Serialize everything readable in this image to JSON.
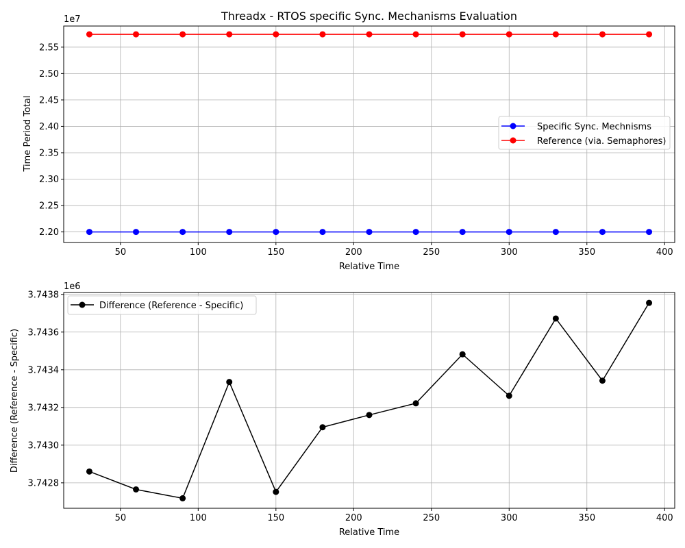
{
  "chart_data": [
    {
      "type": "line",
      "title": "Threadx - RTOS specific Sync. Mechanisms Evaluation",
      "xlabel": "Relative Time",
      "ylabel": "Time Period Total",
      "y_offset_label": "1e7",
      "x": [
        30,
        60,
        90,
        120,
        150,
        180,
        210,
        240,
        270,
        300,
        330,
        360,
        390
      ],
      "xlim": [
        13.5,
        406.5
      ],
      "ylim": [
        21800000,
        25900000
      ],
      "xticks": [
        50,
        100,
        150,
        200,
        250,
        300,
        350,
        400
      ],
      "xtick_labels": [
        "50",
        "100",
        "150",
        "200",
        "250",
        "300",
        "350",
        "400"
      ],
      "yticks": [
        22000000,
        22500000,
        23000000,
        23500000,
        24000000,
        24500000,
        25000000,
        25500000
      ],
      "ytick_labels": [
        "2.20",
        "2.25",
        "2.30",
        "2.35",
        "2.40",
        "2.45",
        "2.50",
        "2.55"
      ],
      "grid": true,
      "legend_position": "center-right",
      "series": [
        {
          "name": "Specific Sync. Mechnisms",
          "color": "#0000ff",
          "marker": "circle",
          "values": [
            22000000,
            22000000,
            22000000,
            22000000,
            22000000,
            22000000,
            22000000,
            22000000,
            22000000,
            22000000,
            22000000,
            22000000,
            22000000
          ]
        },
        {
          "name": "Reference (via. Semaphores)",
          "color": "#ff0000",
          "marker": "circle",
          "values": [
            25743000,
            25743000,
            25743000,
            25743000,
            25743000,
            25743000,
            25743000,
            25743000,
            25743000,
            25743000,
            25743000,
            25743000,
            25743000
          ]
        }
      ]
    },
    {
      "type": "line",
      "title": "",
      "xlabel": "Relative Time",
      "ylabel": "Difference (Reference - Specific)",
      "y_offset_label": "1e6",
      "x": [
        30,
        60,
        90,
        120,
        150,
        180,
        210,
        240,
        270,
        300,
        330,
        360,
        390
      ],
      "xlim": [
        13.5,
        406.5
      ],
      "ylim": [
        3742665,
        3743810
      ],
      "xticks": [
        50,
        100,
        150,
        200,
        250,
        300,
        350,
        400
      ],
      "xtick_labels": [
        "50",
        "100",
        "150",
        "200",
        "250",
        "300",
        "350",
        "400"
      ],
      "yticks": [
        3742800,
        3743000,
        3743200,
        3743400,
        3743600,
        3743800
      ],
      "ytick_labels": [
        "3.7428",
        "3.7430",
        "3.7432",
        "3.7434",
        "3.7436",
        "3.7438"
      ],
      "grid": true,
      "legend_position": "top-left",
      "series": [
        {
          "name": "Difference (Reference - Specific)",
          "color": "#000000",
          "marker": "circle",
          "values": [
            3742860,
            3742765,
            3742718,
            3743335,
            3742752,
            3743095,
            3743160,
            3743222,
            3743482,
            3743262,
            3743672,
            3743342,
            3743755
          ]
        }
      ]
    }
  ]
}
